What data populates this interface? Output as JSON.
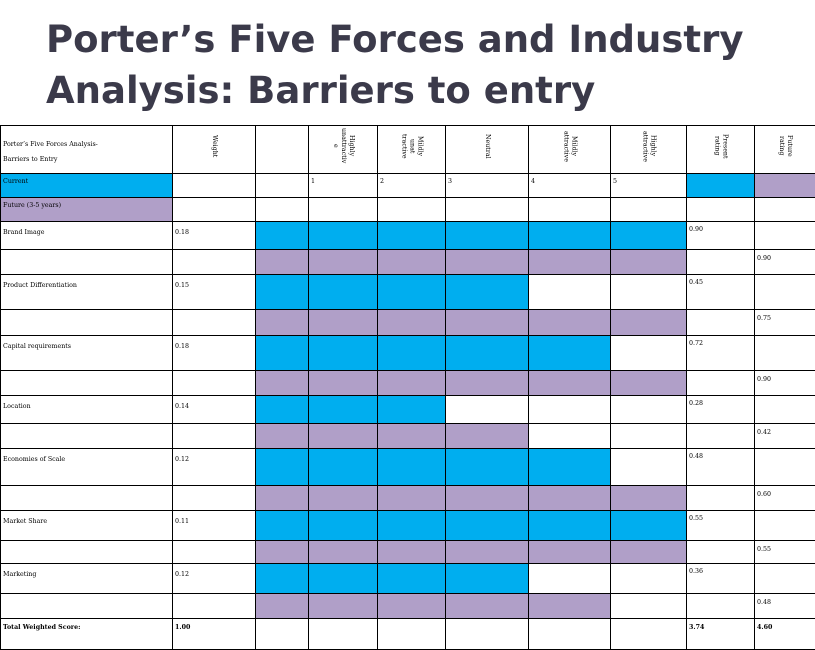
{
  "title": {
    "line1": "Porter’s Five Forces and Industry",
    "line2": "Analysis: Barriers to entry"
  },
  "colors": {
    "current": "#00aeef",
    "future": "#b09fc8"
  },
  "header": {
    "label_line1": "Porter’s Five Forces Analysis-",
    "label_line2": "Barriers to Entry",
    "weight": "Weight",
    "col1": "Highly unattractiv e",
    "col2": "Mildly unat tractive",
    "col3": "Neutral",
    "col4": "Mildly attractive",
    "col5": "Highly attractive",
    "present": "Present rating",
    "future": "Future rating"
  },
  "legend": {
    "current_label": "Current",
    "future_label": "Future (3-5 years)",
    "n1": "1",
    "n2": "2",
    "n3": "3",
    "n4": "4",
    "n5": "5"
  },
  "factors": [
    {
      "name": "Brand Image",
      "weight": "0.18",
      "current_level": 5,
      "future_level": 5,
      "present_rating": "0.90",
      "future_rating": "0.90"
    },
    {
      "name": "Product Differentiation",
      "weight": "0.15",
      "current_level": 3,
      "future_level": 5,
      "present_rating": "0.45",
      "future_rating": "0.75"
    },
    {
      "name": "Capital requirements",
      "weight": "0.18",
      "current_level": 4,
      "future_level": 5,
      "present_rating": "0.72",
      "future_rating": "0.90"
    },
    {
      "name": "Location",
      "weight": "0.14",
      "current_level": 2,
      "future_level": 3,
      "present_rating": "0.28",
      "future_rating": "0.42"
    },
    {
      "name": "Economies of Scale",
      "weight": "0.12",
      "current_level": 4,
      "future_level": 5,
      "present_rating": "0.48",
      "future_rating": "0.60"
    },
    {
      "name": "Market Share",
      "weight": "0.11",
      "current_level": 5,
      "future_level": 5,
      "present_rating": "0.55",
      "future_rating": "0.55"
    },
    {
      "name": "Marketing",
      "weight": "0.12",
      "current_level": 3,
      "future_level": 4,
      "present_rating": "0.36",
      "future_rating": "0.48"
    }
  ],
  "total": {
    "label": "Total Weighted Score:",
    "weight": "1.00",
    "present": "3.74",
    "future": "4.60"
  }
}
